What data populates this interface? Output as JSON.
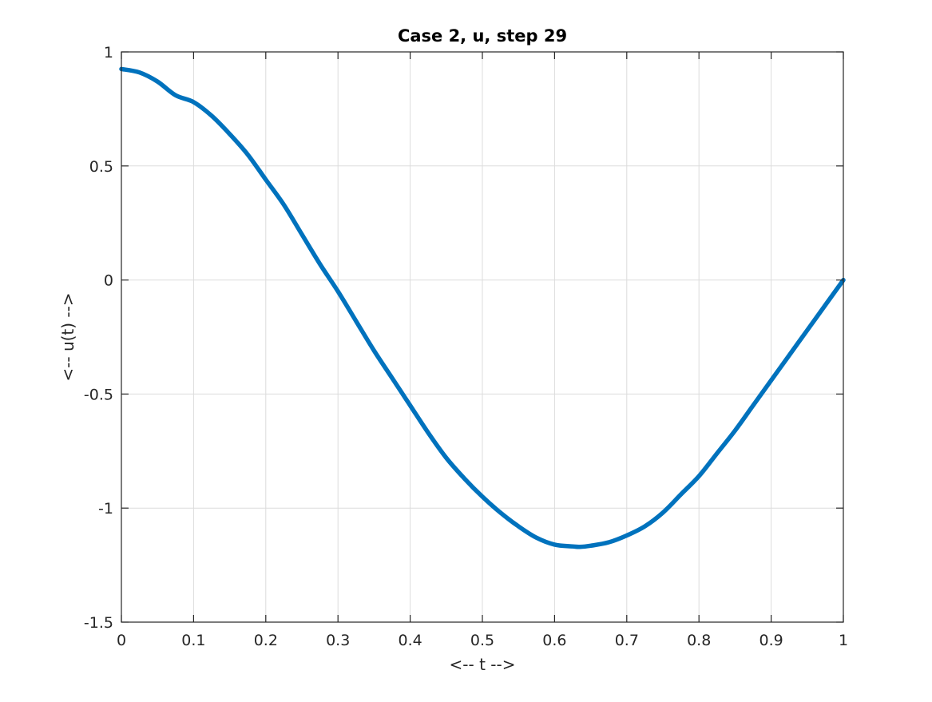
{
  "chart_data": {
    "type": "line",
    "title": "Case 2, u, step 29",
    "xlabel": "<-- t -->",
    "ylabel": "<-- u(t) -->",
    "xlim": [
      0,
      1
    ],
    "ylim": [
      -1.5,
      1
    ],
    "xticks": [
      0,
      0.1,
      0.2,
      0.3,
      0.4,
      0.5,
      0.6,
      0.7,
      0.8,
      0.9,
      1
    ],
    "xtick_labels": [
      "0",
      "0.1",
      "0.2",
      "0.3",
      "0.4",
      "0.5",
      "0.6",
      "0.7",
      "0.8",
      "0.9",
      "1"
    ],
    "yticks": [
      -1.5,
      -1,
      -0.5,
      0,
      0.5,
      1
    ],
    "ytick_labels": [
      "-1.5",
      "-1",
      "-0.5",
      "0",
      "0.5",
      "1"
    ],
    "grid": true,
    "line_color": "#0072BD",
    "series": [
      {
        "x": [
          0,
          0.025,
          0.05,
          0.075,
          0.1,
          0.125,
          0.15,
          0.175,
          0.2,
          0.225,
          0.25,
          0.275,
          0.3,
          0.325,
          0.35,
          0.375,
          0.4,
          0.425,
          0.45,
          0.475,
          0.5,
          0.525,
          0.55,
          0.575,
          0.6,
          0.625,
          0.635,
          0.65,
          0.675,
          0.7,
          0.725,
          0.75,
          0.775,
          0.8,
          0.825,
          0.85,
          0.875,
          0.9,
          0.925,
          0.95,
          0.975,
          1
        ],
        "y": [
          0.925,
          0.91,
          0.87,
          0.81,
          0.78,
          0.72,
          0.64,
          0.55,
          0.44,
          0.33,
          0.2,
          0.07,
          -0.05,
          -0.18,
          -0.31,
          -0.43,
          -0.55,
          -0.67,
          -0.78,
          -0.87,
          -0.95,
          -1.02,
          -1.08,
          -1.13,
          -1.16,
          -1.168,
          -1.17,
          -1.165,
          -1.15,
          -1.12,
          -1.08,
          -1.02,
          -0.94,
          -0.86,
          -0.76,
          -0.66,
          -0.55,
          -0.44,
          -0.33,
          -0.22,
          -0.11,
          0
        ]
      }
    ]
  }
}
